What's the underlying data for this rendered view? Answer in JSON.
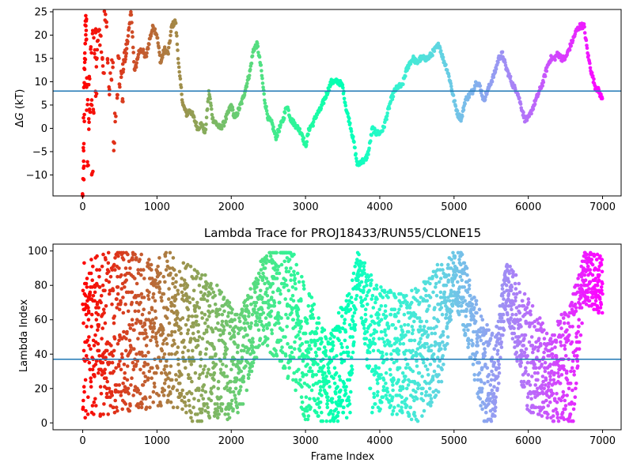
{
  "chart_data": [
    {
      "type": "scatter",
      "title": "",
      "xlabel": "",
      "ylabel": "ΔG (kT)",
      "ylabel_parts": {
        "delta": "Δ",
        "symbol": "G",
        "unit": " (kT)"
      },
      "xlim": [
        -400,
        7250
      ],
      "ylim": [
        -14.5,
        25.5
      ],
      "xticks": [
        0,
        1000,
        2000,
        3000,
        4000,
        5000,
        6000,
        7000
      ],
      "yticks": [
        -10,
        -5,
        0,
        5,
        10,
        15,
        20,
        25
      ],
      "grid": false,
      "colormap": "rainbow (red at frame 0, purple at frame 7000)",
      "hline": {
        "y": 8.0,
        "color": "#1f77b4"
      },
      "trace": {
        "x": [
          0,
          50,
          100,
          150,
          200,
          250,
          300,
          350,
          400,
          450,
          500,
          550,
          600,
          650,
          700,
          750,
          800,
          850,
          900,
          950,
          1000,
          1050,
          1100,
          1150,
          1200,
          1250,
          1300,
          1350,
          1400,
          1450,
          1500,
          1550,
          1600,
          1650,
          1700,
          1750,
          1800,
          1850,
          1900,
          1950,
          2000,
          2050,
          2100,
          2150,
          2200,
          2250,
          2300,
          2350,
          2400,
          2450,
          2500,
          2550,
          2600,
          2650,
          2700,
          2750,
          2800,
          2850,
          2900,
          2950,
          3000,
          3050,
          3100,
          3150,
          3200,
          3250,
          3300,
          3350,
          3400,
          3450,
          3500,
          3550,
          3600,
          3650,
          3700,
          3750,
          3800,
          3850,
          3900,
          3950,
          4000,
          4050,
          4100,
          4150,
          4200,
          4250,
          4300,
          4350,
          4400,
          4450,
          4500,
          4550,
          4600,
          4650,
          4700,
          4750,
          4800,
          4850,
          4900,
          4950,
          5000,
          5050,
          5100,
          5150,
          5200,
          5250,
          5300,
          5350,
          5400,
          5450,
          5500,
          5550,
          5600,
          5650,
          5700,
          5750,
          5800,
          5850,
          5900,
          5950,
          6000,
          6050,
          6100,
          6150,
          6200,
          6250,
          6300,
          6350,
          6400,
          6450,
          6500,
          6550,
          6600,
          6650,
          6700,
          6750,
          6800,
          6850,
          6900,
          6950,
          7000
        ],
        "y": [
          5,
          10,
          2,
          18,
          8,
          20,
          22,
          15,
          10,
          2,
          6,
          14,
          18,
          25,
          12,
          16,
          17,
          15,
          19,
          22,
          20,
          14,
          17,
          16,
          22,
          23,
          12,
          5,
          3,
          4,
          2,
          0,
          1,
          -1,
          8,
          2,
          1,
          0,
          1,
          3,
          5,
          2,
          4,
          6,
          9,
          12,
          17,
          18,
          13,
          6,
          2,
          1,
          -2,
          0,
          2,
          5,
          2,
          1,
          0,
          -1,
          -4,
          0,
          1,
          3,
          4,
          6,
          8,
          10,
          10,
          10,
          9,
          4,
          1,
          -3,
          -8,
          -7,
          -7,
          -5,
          0,
          -1,
          -1,
          0,
          3,
          6,
          8,
          9,
          9,
          12,
          14,
          15,
          14,
          15,
          15,
          15,
          16,
          17,
          18,
          15,
          13,
          10,
          6,
          3,
          2,
          6,
          7,
          8,
          10,
          9,
          6,
          8,
          10,
          12,
          15,
          16,
          13,
          11,
          9,
          8,
          5,
          2,
          2,
          4,
          6,
          8,
          10,
          13,
          15,
          15,
          16,
          15,
          15,
          17,
          19,
          21,
          22,
          22,
          16,
          12,
          9,
          8,
          6
        ]
      },
      "early_scatter": {
        "x": [
          5,
          8,
          12,
          15,
          18,
          22,
          25,
          30,
          35,
          40,
          45,
          50,
          55,
          60,
          70,
          80,
          90,
          100,
          110,
          120,
          130,
          140,
          150,
          160,
          170,
          180,
          190,
          200,
          220,
          240,
          260,
          280,
          300,
          320,
          340,
          360,
          380,
          400,
          420,
          440,
          460,
          480,
          500,
          520,
          540
        ],
        "y": [
          -14,
          -12,
          -8,
          -4,
          2,
          9,
          13,
          15,
          19,
          22,
          23,
          20,
          10,
          5,
          -7,
          1,
          10,
          4,
          17,
          6,
          -10,
          20,
          3,
          16,
          21,
          7,
          14,
          18,
          22,
          19,
          16,
          13,
          24,
          23,
          15,
          8,
          11,
          14,
          -4,
          2,
          6,
          16,
          9,
          12,
          6
        ]
      }
    },
    {
      "type": "scatter",
      "title": "Lambda Trace for PROJ18433/RUN55/CLONE15",
      "xlabel": "Frame Index",
      "ylabel": "Lambda Index",
      "xlim": [
        -400,
        7250
      ],
      "ylim": [
        -4,
        104
      ],
      "xticks": [
        0,
        1000,
        2000,
        3000,
        4000,
        5000,
        6000,
        7000
      ],
      "yticks": [
        0,
        20,
        40,
        60,
        80,
        100
      ],
      "grid": false,
      "colormap": "rainbow (red at frame 0, purple at frame 7000)",
      "hline": {
        "y": 37,
        "color": "#1f77b4"
      },
      "n_points": 3500,
      "envelope": {
        "x": [
          0,
          300,
          600,
          900,
          1200,
          1500,
          1800,
          2100,
          2400,
          2700,
          3000,
          3300,
          3600,
          3700,
          3900,
          4200,
          4500,
          4800,
          5000,
          5100,
          5400,
          5550,
          5700,
          6000,
          6300,
          6600,
          6750,
          7000
        ],
        "center": [
          48,
          52,
          55,
          52,
          55,
          45,
          42,
          32,
          70,
          72,
          42,
          25,
          40,
          90,
          45,
          40,
          38,
          55,
          85,
          80,
          30,
          25,
          80,
          40,
          25,
          38,
          85,
          80
        ],
        "spread": [
          45,
          48,
          48,
          45,
          45,
          45,
          40,
          30,
          25,
          40,
          40,
          25,
          40,
          10,
          40,
          35,
          40,
          40,
          15,
          20,
          30,
          25,
          15,
          35,
          25,
          40,
          15,
          18
        ]
      }
    }
  ]
}
